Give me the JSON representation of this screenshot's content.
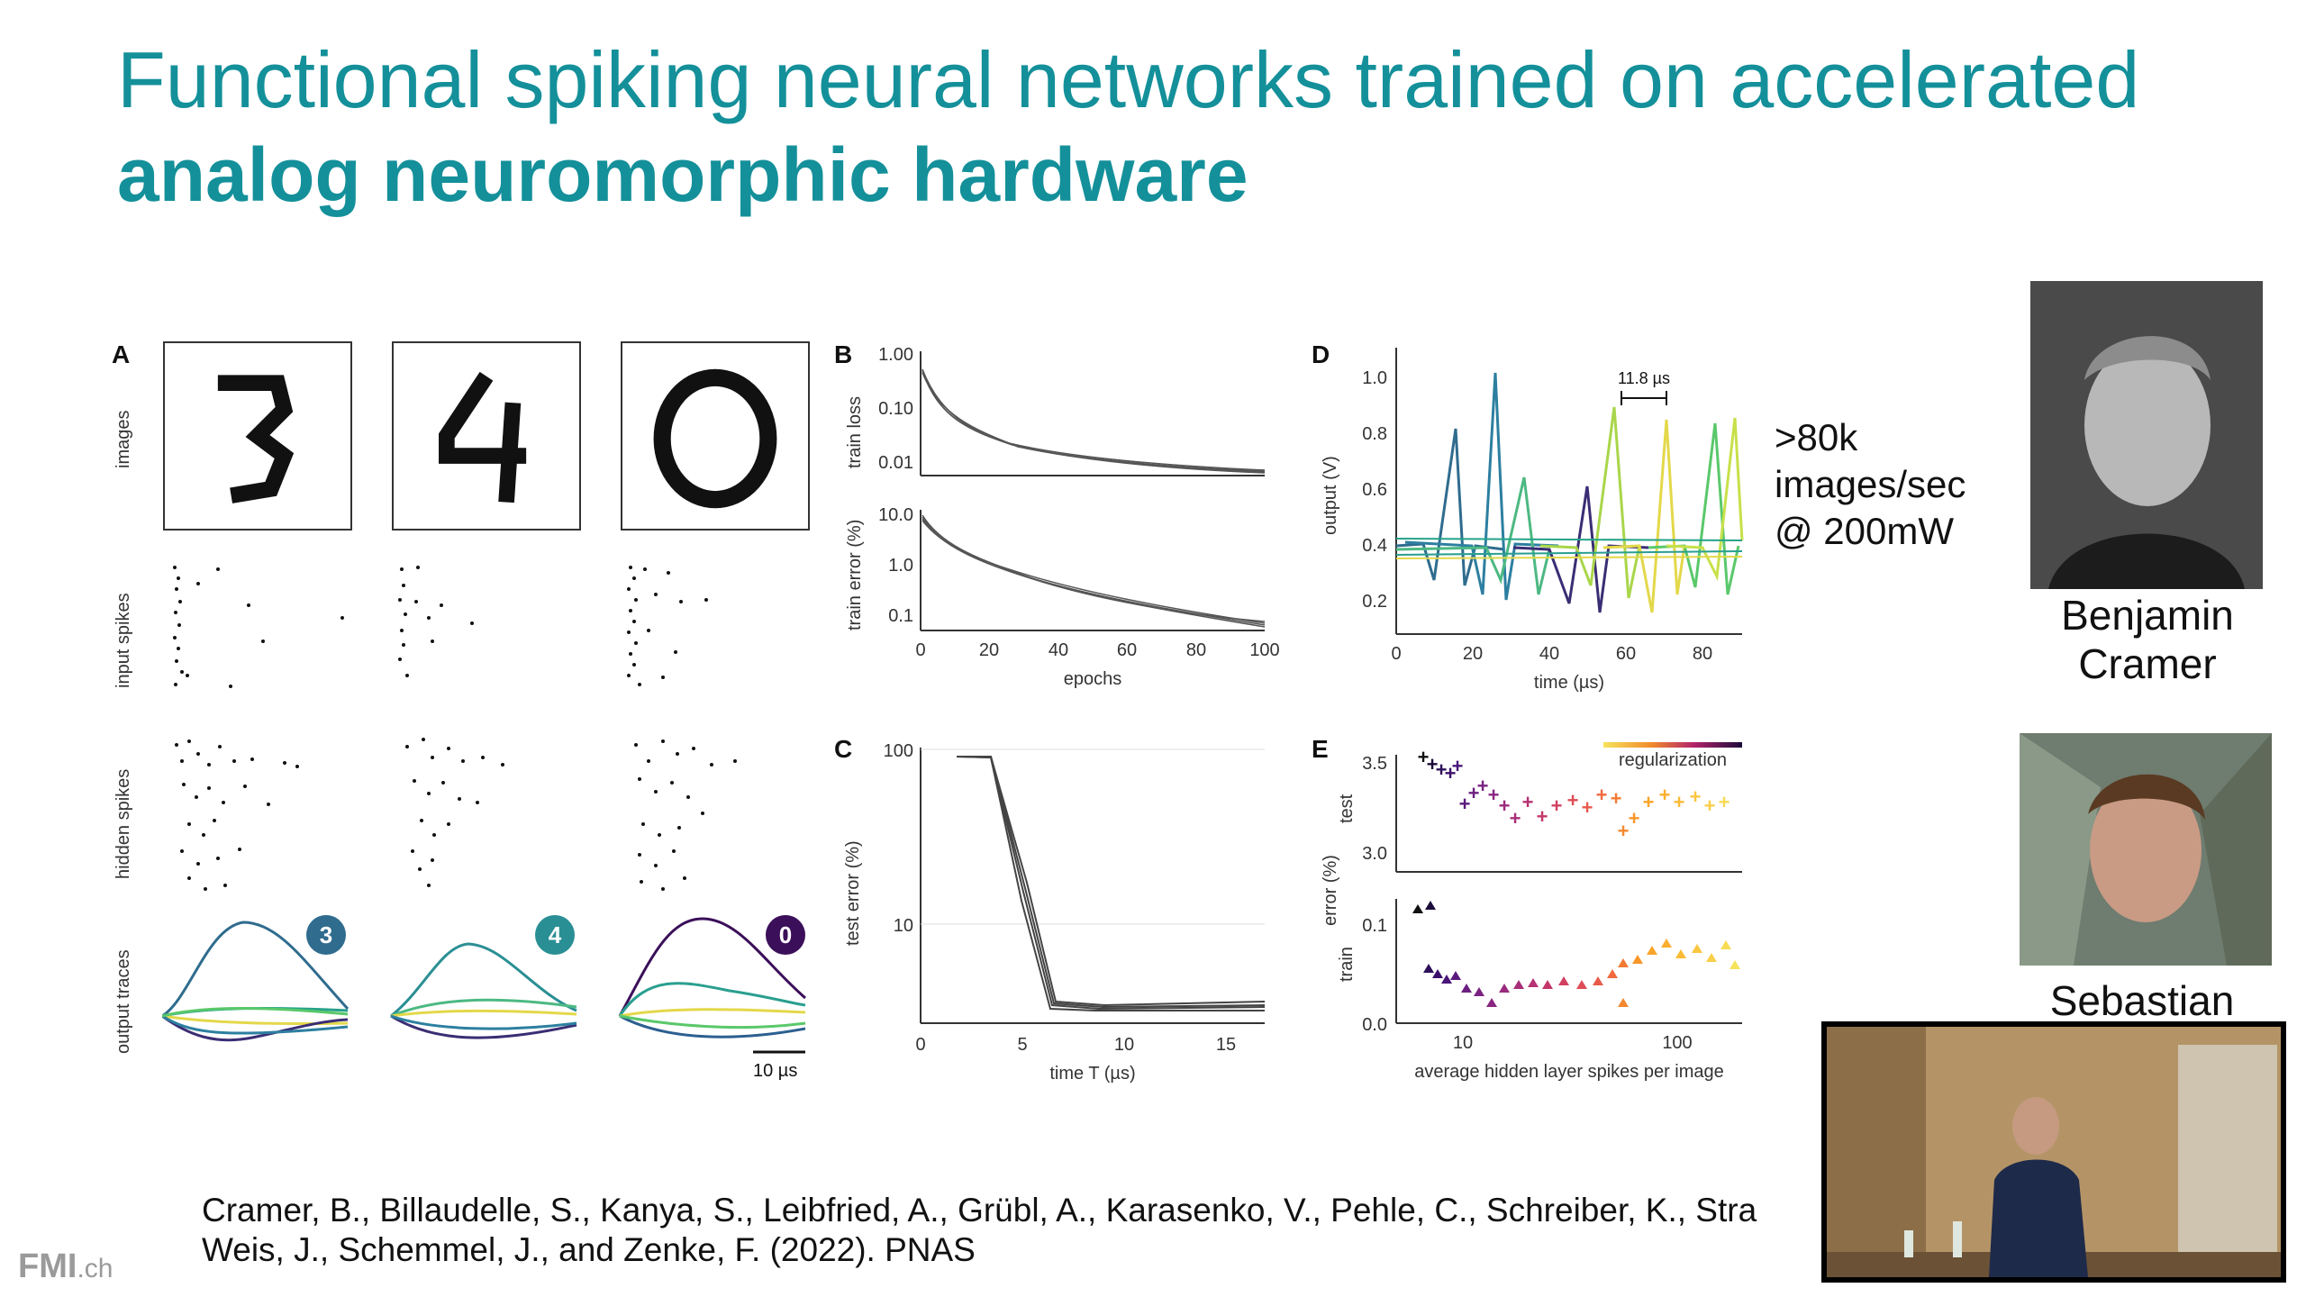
{
  "slide": {
    "title_line1": "Functional spiking neural networks trained on accelerated",
    "title_line2": "analog neuromorphic hardware",
    "stats_line1": ">80k",
    "stats_line2": "images/sec",
    "stats_line3": "@ 200mW",
    "person1_first": "Benjamin",
    "person1_last": "Cramer",
    "person2_first": "Sebastian",
    "citation_line1": "Cramer, B., Billaudelle, S., Kanya, S., Leibfried, A., Grübl, A., Karasenko, V., Pehle, C., Schreiber, K., Stra",
    "citation_line2": "Weis, J., Schemmel, J., and  Zenke, F. (2022). PNAS",
    "logo_main": "FMI",
    "logo_suffix": ".ch"
  },
  "panelA": {
    "letter": "A",
    "row_labels": [
      "images",
      "input spikes",
      "hidden spikes",
      "output traces"
    ],
    "digits": [
      "3",
      "4",
      "0"
    ],
    "badge_colors": [
      "#2f6c8e",
      "#2a8f94",
      "#3b0f5a"
    ],
    "scale_label": "10 µs"
  },
  "panelB": {
    "letter": "B",
    "top_ylabel": "train loss",
    "top_ticks": [
      "1.00",
      "0.10",
      "0.01"
    ],
    "bottom_ylabel": "train error (%)",
    "bottom_ticks": [
      "10.0",
      "1.0",
      "0.1"
    ],
    "xticks": [
      "0",
      "20",
      "40",
      "60",
      "80",
      "100"
    ],
    "xlabel": "epochs"
  },
  "panelC": {
    "letter": "C",
    "ylabel": "test error (%)",
    "yticks": [
      "100",
      "10"
    ],
    "xticks": [
      "0",
      "5",
      "10",
      "15"
    ],
    "xlabel": "time T (µs)"
  },
  "panelD": {
    "letter": "D",
    "ylabel": "output (V)",
    "yticks": [
      "1.0",
      "0.8",
      "0.6",
      "0.4",
      "0.2"
    ],
    "xticks": [
      "0",
      "20",
      "40",
      "60",
      "80"
    ],
    "xlabel": "time (µs)",
    "scale_label": "11.8 µs"
  },
  "panelE": {
    "letter": "E",
    "legend": "regularization",
    "ylabel": "error (%)",
    "top_sub": "test",
    "bottom_sub": "train",
    "top_ticks": [
      "3.5",
      "3.0"
    ],
    "bottom_ticks": [
      "0.1",
      "0.0"
    ],
    "xticks": [
      "10",
      "100"
    ],
    "xlabel": "average hidden layer spikes per image"
  }
}
